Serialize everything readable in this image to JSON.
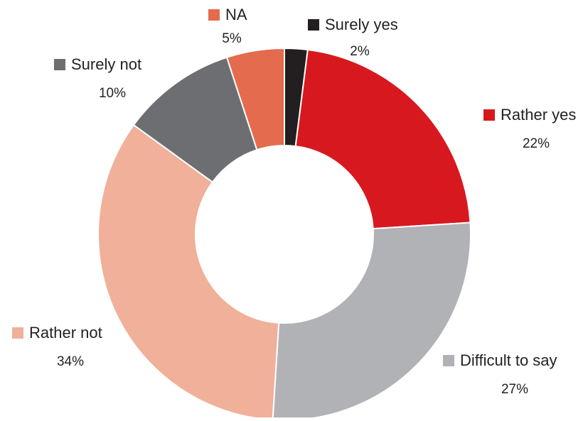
{
  "chart_data": {
    "type": "pie",
    "variant": "donut",
    "title": "",
    "legend_placement": "around",
    "series": [
      {
        "name": "Surely yes",
        "value": 2,
        "label": "2%",
        "color": "#231f20"
      },
      {
        "name": "Rather yes",
        "value": 22,
        "label": "22%",
        "color": "#d7191f"
      },
      {
        "name": "Difficult to say",
        "value": 27,
        "label": "27%",
        "color": "#b1b2b6"
      },
      {
        "name": "Rather not",
        "value": 34,
        "label": "34%",
        "color": "#f0b09a"
      },
      {
        "name": "Surely not",
        "value": 10,
        "label": "10%",
        "color": "#6d6e71"
      },
      {
        "name": "NA",
        "value": 5,
        "label": "5%",
        "color": "#e46b4d"
      }
    ]
  }
}
